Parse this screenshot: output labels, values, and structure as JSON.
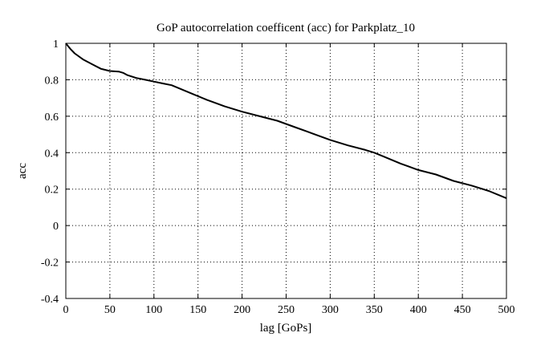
{
  "chart_data": {
    "type": "line",
    "title": "GoP autocorrelation coefficent (acc) for Parkplatz_10",
    "xlabel": "lag [GoPs]",
    "ylabel": "acc",
    "xlim": [
      0,
      500
    ],
    "ylim": [
      -0.4,
      1
    ],
    "grid": true,
    "xticks": [
      0,
      50,
      100,
      150,
      200,
      250,
      300,
      350,
      400,
      450,
      500
    ],
    "yticks": [
      -0.4,
      -0.2,
      0,
      0.2,
      0.4,
      0.6,
      0.8,
      1
    ],
    "xtick_labels": [
      "0",
      "50",
      "100",
      "150",
      "200",
      "250",
      "300",
      "350",
      "400",
      "450",
      "500"
    ],
    "ytick_labels": [
      "-0.4",
      "-0.2",
      "0",
      "0.2",
      "0.4",
      "0.6",
      "0.8",
      "1"
    ],
    "series": [
      {
        "name": "acc",
        "x": [
          0,
          5,
          10,
          20,
          30,
          40,
          50,
          60,
          65,
          70,
          80,
          90,
          100,
          110,
          120,
          140,
          160,
          180,
          200,
          220,
          240,
          260,
          280,
          300,
          320,
          340,
          350,
          360,
          380,
          400,
          420,
          440,
          460,
          480,
          500
        ],
        "y": [
          1.0,
          0.97,
          0.945,
          0.91,
          0.885,
          0.86,
          0.848,
          0.845,
          0.838,
          0.825,
          0.81,
          0.8,
          0.79,
          0.78,
          0.77,
          0.73,
          0.69,
          0.655,
          0.625,
          0.6,
          0.575,
          0.54,
          0.505,
          0.47,
          0.44,
          0.415,
          0.4,
          0.38,
          0.34,
          0.305,
          0.28,
          0.245,
          0.22,
          0.19,
          0.15
        ]
      }
    ]
  }
}
